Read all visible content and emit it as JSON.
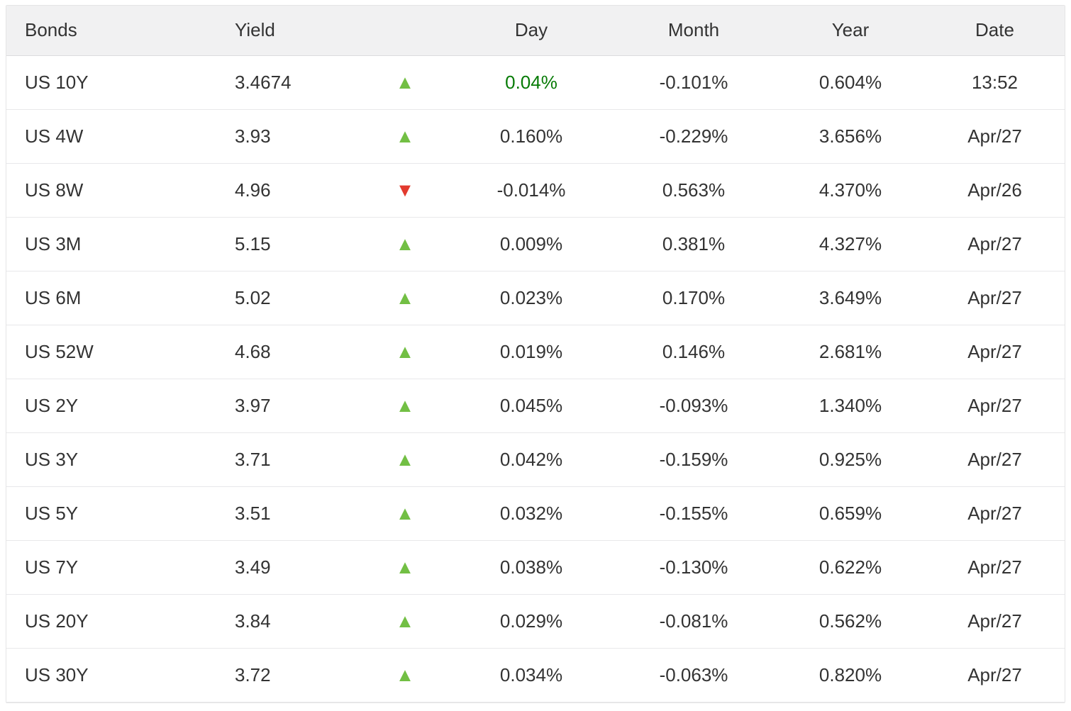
{
  "chart_data": {
    "type": "table",
    "columns": [
      "Bonds",
      "Yield",
      "",
      "Day",
      "Month",
      "Year",
      "Date"
    ],
    "rows": [
      {
        "bond": "US 10Y",
        "yield": "3.4674",
        "direction": "up",
        "day": "0.04%",
        "day_color": "green",
        "month": "-0.101%",
        "year": "0.604%",
        "date": "13:52"
      },
      {
        "bond": "US 4W",
        "yield": "3.93",
        "direction": "up",
        "day": "0.160%",
        "day_color": "default",
        "month": "-0.229%",
        "year": "3.656%",
        "date": "Apr/27"
      },
      {
        "bond": "US 8W",
        "yield": "4.96",
        "direction": "down",
        "day": "-0.014%",
        "day_color": "default",
        "month": "0.563%",
        "year": "4.370%",
        "date": "Apr/26"
      },
      {
        "bond": "US 3M",
        "yield": "5.15",
        "direction": "up",
        "day": "0.009%",
        "day_color": "default",
        "month": "0.381%",
        "year": "4.327%",
        "date": "Apr/27"
      },
      {
        "bond": "US 6M",
        "yield": "5.02",
        "direction": "up",
        "day": "0.023%",
        "day_color": "default",
        "month": "0.170%",
        "year": "3.649%",
        "date": "Apr/27"
      },
      {
        "bond": "US 52W",
        "yield": "4.68",
        "direction": "up",
        "day": "0.019%",
        "day_color": "default",
        "month": "0.146%",
        "year": "2.681%",
        "date": "Apr/27"
      },
      {
        "bond": "US 2Y",
        "yield": "3.97",
        "direction": "up",
        "day": "0.045%",
        "day_color": "default",
        "month": "-0.093%",
        "year": "1.340%",
        "date": "Apr/27"
      },
      {
        "bond": "US 3Y",
        "yield": "3.71",
        "direction": "up",
        "day": "0.042%",
        "day_color": "default",
        "month": "-0.159%",
        "year": "0.925%",
        "date": "Apr/27"
      },
      {
        "bond": "US 5Y",
        "yield": "3.51",
        "direction": "up",
        "day": "0.032%",
        "day_color": "default",
        "month": "-0.155%",
        "year": "0.659%",
        "date": "Apr/27"
      },
      {
        "bond": "US 7Y",
        "yield": "3.49",
        "direction": "up",
        "day": "0.038%",
        "day_color": "default",
        "month": "-0.130%",
        "year": "0.622%",
        "date": "Apr/27"
      },
      {
        "bond": "US 20Y",
        "yield": "3.84",
        "direction": "up",
        "day": "0.029%",
        "day_color": "default",
        "month": "-0.081%",
        "year": "0.562%",
        "date": "Apr/27"
      },
      {
        "bond": "US 30Y",
        "yield": "3.72",
        "direction": "up",
        "day": "0.034%",
        "day_color": "default",
        "month": "-0.063%",
        "year": "0.820%",
        "date": "Apr/27"
      }
    ]
  },
  "colors": {
    "up_arrow": "#72bf44",
    "down_arrow": "#e23a2e",
    "highlight_green": "#077b06",
    "text": "#333333",
    "header_bg": "#f1f1f2",
    "row_border": "#e8e8ea"
  },
  "icons": {
    "up": "up-arrow-icon",
    "down": "down-arrow-icon"
  }
}
